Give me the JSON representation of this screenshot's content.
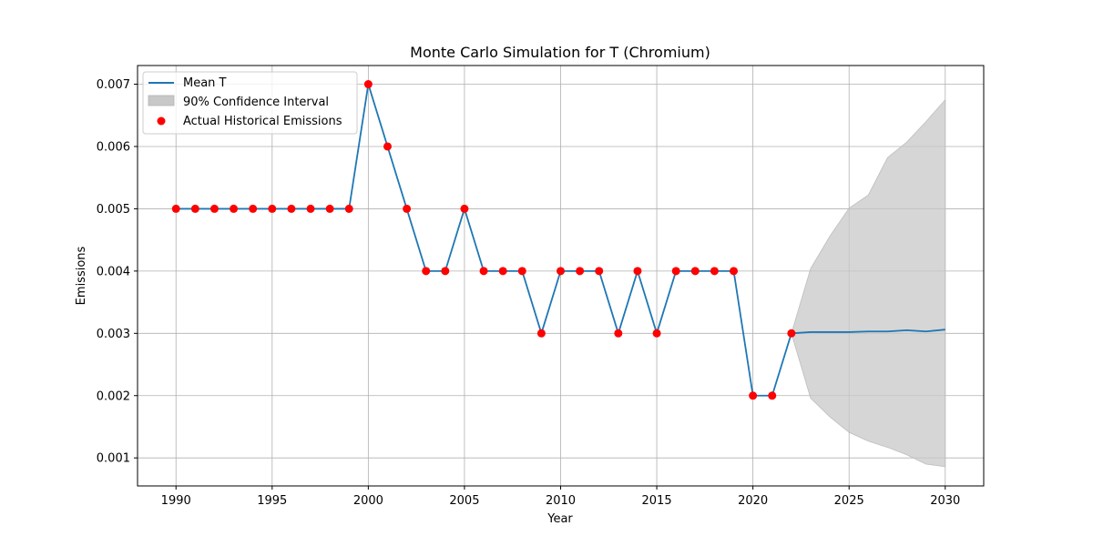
{
  "chart_data": {
    "type": "line",
    "title": "Monte Carlo Simulation for T (Chromium)",
    "xlabel": "Year",
    "ylabel": "Emissions",
    "xlim": [
      1988,
      2032
    ],
    "ylim": [
      0.00055,
      0.0073
    ],
    "xticks": [
      "1990",
      "1995",
      "2000",
      "2005",
      "2010",
      "2015",
      "2020",
      "2025",
      "2030"
    ],
    "yticks": [
      "0.001",
      "0.002",
      "0.003",
      "0.004",
      "0.005",
      "0.006",
      "0.007"
    ],
    "grid": true,
    "legend_position": "top-left",
    "legend": {
      "mean": "Mean T",
      "ci": "90% Confidence Interval",
      "hist": "Actual Historical Emissions"
    },
    "colors": {
      "mean": "#1f77b4",
      "ci": "#c8c8c8",
      "hist": "#ff0000"
    },
    "historical": {
      "x": [
        1990,
        1991,
        1992,
        1993,
        1994,
        1995,
        1996,
        1997,
        1998,
        1999,
        2000,
        2001,
        2002,
        2003,
        2004,
        2005,
        2006,
        2007,
        2008,
        2009,
        2010,
        2011,
        2012,
        2013,
        2014,
        2015,
        2016,
        2017,
        2018,
        2019,
        2020,
        2021,
        2022
      ],
      "y": [
        0.005,
        0.005,
        0.005,
        0.005,
        0.005,
        0.005,
        0.005,
        0.005,
        0.005,
        0.005,
        0.007,
        0.006,
        0.005,
        0.004,
        0.004,
        0.005,
        0.004,
        0.004,
        0.004,
        0.003,
        0.004,
        0.004,
        0.004,
        0.003,
        0.004,
        0.003,
        0.004,
        0.004,
        0.004,
        0.004,
        0.002,
        0.002,
        0.003
      ]
    },
    "mean": {
      "x": [
        1990,
        1991,
        1992,
        1993,
        1994,
        1995,
        1996,
        1997,
        1998,
        1999,
        2000,
        2001,
        2002,
        2003,
        2004,
        2005,
        2006,
        2007,
        2008,
        2009,
        2010,
        2011,
        2012,
        2013,
        2014,
        2015,
        2016,
        2017,
        2018,
        2019,
        2020,
        2021,
        2022,
        2023,
        2024,
        2025,
        2026,
        2027,
        2028,
        2029,
        2030
      ],
      "y": [
        0.005,
        0.005,
        0.005,
        0.005,
        0.005,
        0.005,
        0.005,
        0.005,
        0.005,
        0.005,
        0.007,
        0.006,
        0.005,
        0.004,
        0.004,
        0.005,
        0.004,
        0.004,
        0.004,
        0.003,
        0.004,
        0.004,
        0.004,
        0.003,
        0.004,
        0.003,
        0.004,
        0.004,
        0.004,
        0.004,
        0.002,
        0.002,
        0.003,
        0.00302,
        0.00302,
        0.00302,
        0.00303,
        0.00303,
        0.00305,
        0.00303,
        0.00306
      ]
    },
    "confidence_interval": {
      "x": [
        2022,
        2023,
        2024,
        2025,
        2026,
        2027,
        2028,
        2029,
        2030
      ],
      "lower": [
        0.003,
        0.00196,
        0.00166,
        0.00141,
        0.00127,
        0.00117,
        0.00105,
        0.0009,
        0.00086
      ],
      "upper": [
        0.003,
        0.00404,
        0.00456,
        0.00501,
        0.00522,
        0.00582,
        0.00607,
        0.0064,
        0.00675
      ]
    }
  }
}
